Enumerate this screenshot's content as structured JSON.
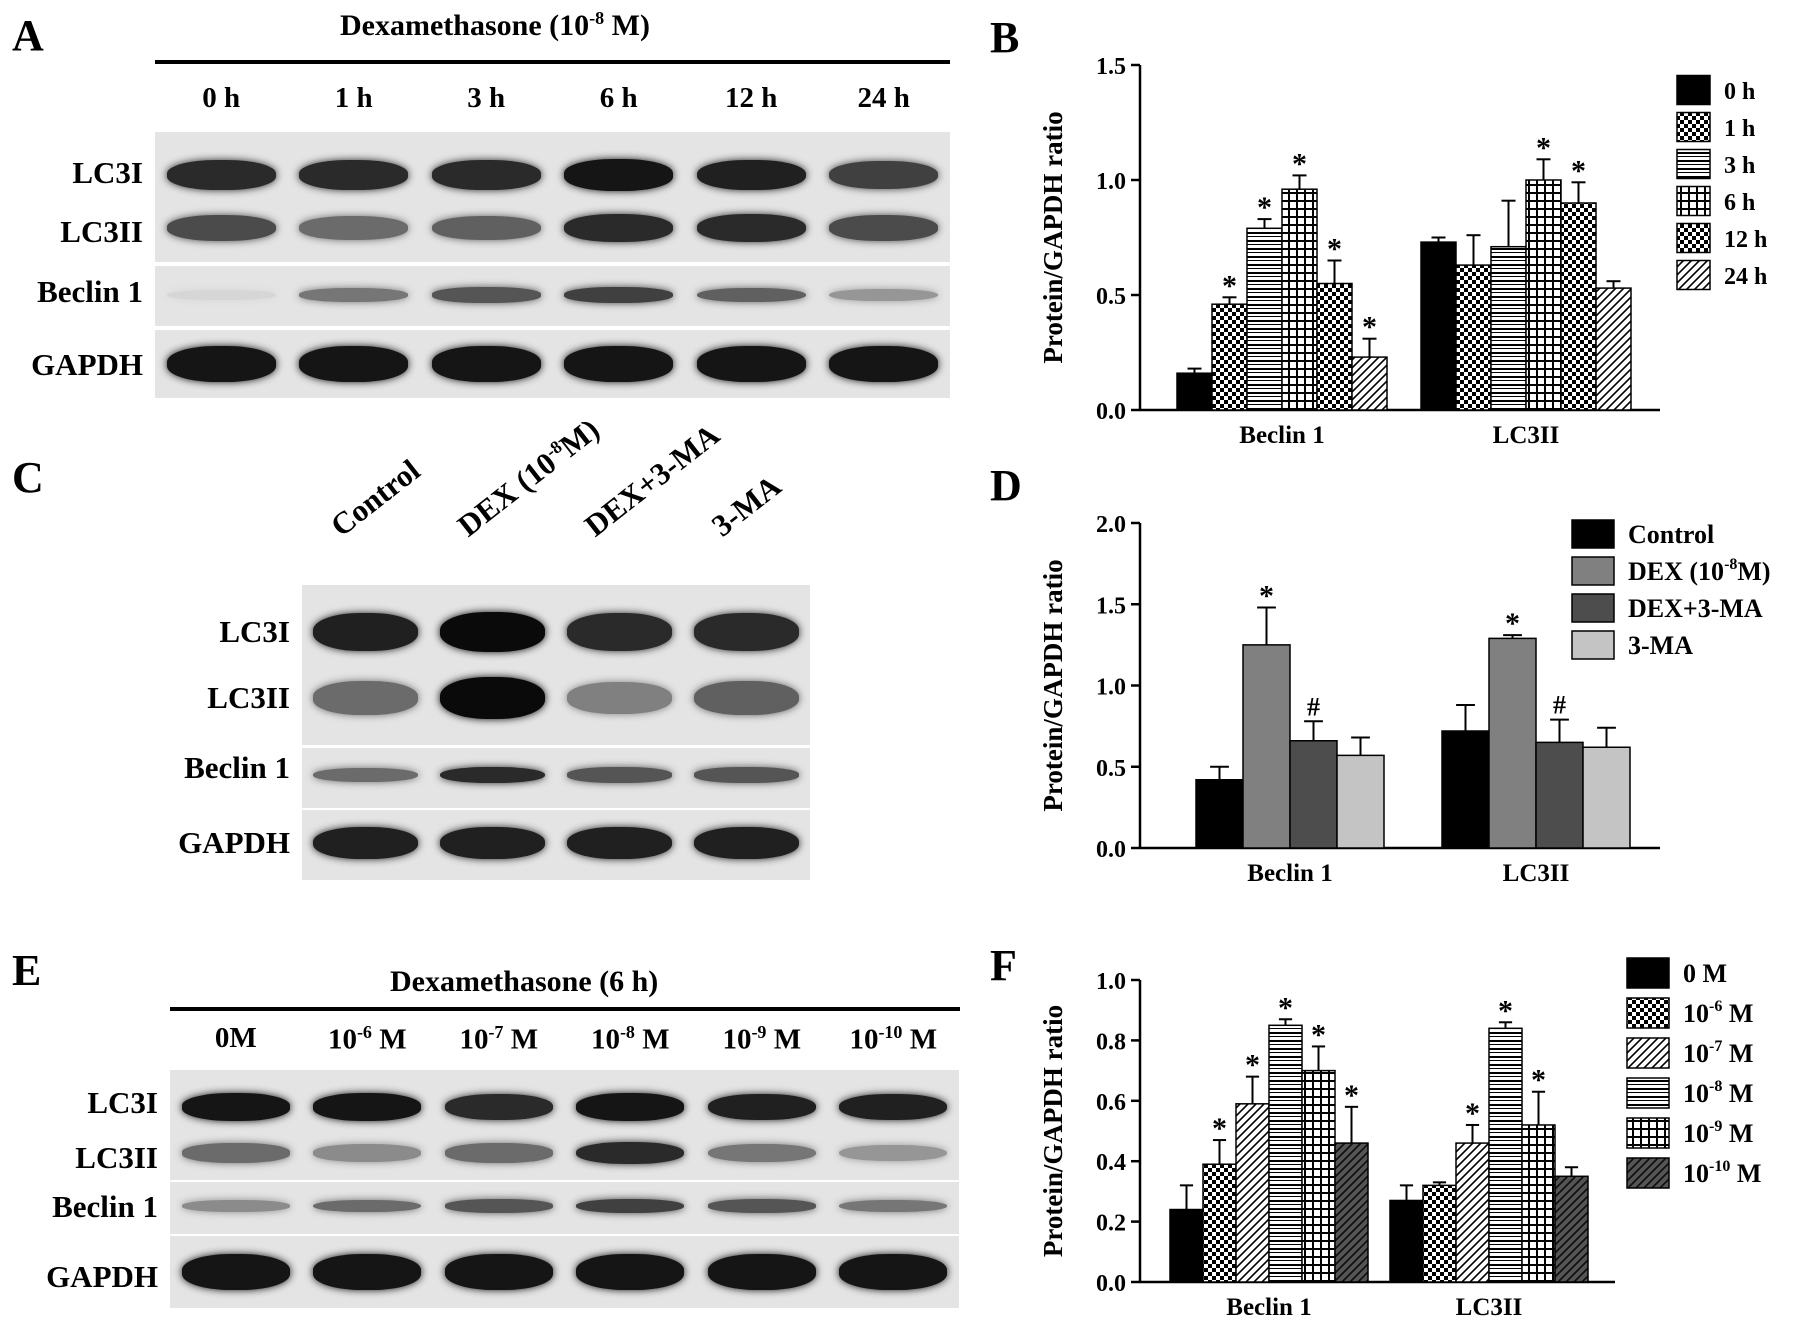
{
  "panels": {
    "A": {
      "letter": "A",
      "header_main": "Dexamethasone (10",
      "header_sup": "-8",
      "header_end": " M)",
      "lanes": [
        "0 h",
        "1 h",
        "3 h",
        "6 h",
        "12 h",
        "24 h"
      ],
      "rows": [
        "LC3I",
        "LC3II",
        "Beclin 1",
        "GAPDH"
      ]
    },
    "C": {
      "letter": "C",
      "lanes": [
        {
          "main": "Control",
          "sup": "",
          "end": ""
        },
        {
          "main": "DEX (10",
          "sup": "-8",
          "end": "M)"
        },
        {
          "main": "DEX+3-MA",
          "sup": "",
          "end": ""
        },
        {
          "main": "3-MA",
          "sup": "",
          "end": ""
        }
      ],
      "rows": [
        "LC3I",
        "LC3II",
        "Beclin 1",
        "GAPDH"
      ]
    },
    "E": {
      "letter": "E",
      "header": "Dexamethasone (6 h)",
      "lanes": [
        {
          "main": "0",
          "sup": "",
          "end": "M"
        },
        {
          "main": "10",
          "sup": "-6",
          "end": " M"
        },
        {
          "main": "10",
          "sup": "-7",
          "end": " M"
        },
        {
          "main": "10",
          "sup": "-8",
          "end": " M"
        },
        {
          "main": "10",
          "sup": "-9",
          "end": " M"
        },
        {
          "main": "10",
          "sup": "-10",
          "end": " M"
        }
      ],
      "rows": [
        "LC3I",
        "LC3II",
        "Beclin 1",
        "GAPDH"
      ]
    }
  },
  "chart_data": [
    {
      "panel": "B",
      "type": "bar",
      "ylabel": "Protein/GAPDH ratio",
      "ylim": [
        0,
        1.5
      ],
      "yticks": [
        "0.0",
        "0.5",
        "1.0",
        "1.5"
      ],
      "categories": [
        "Beclin 1",
        "LC3II"
      ],
      "legend_position": "top-right",
      "series": [
        {
          "name": "0 h",
          "pattern": "solid",
          "values": [
            0.16,
            0.73
          ],
          "errors": [
            0.02,
            0.02
          ],
          "marks": [
            "",
            ""
          ]
        },
        {
          "name": "1 h",
          "pattern": "checker",
          "values": [
            0.46,
            0.63
          ],
          "errors": [
            0.03,
            0.13
          ],
          "marks": [
            "*",
            ""
          ]
        },
        {
          "name": "3 h",
          "pattern": "hlines",
          "values": [
            0.79,
            0.71
          ],
          "errors": [
            0.04,
            0.2
          ],
          "marks": [
            "*",
            ""
          ]
        },
        {
          "name": "6 h",
          "pattern": "grid",
          "values": [
            0.96,
            1.0
          ],
          "errors": [
            0.06,
            0.09
          ],
          "marks": [
            "*",
            "*"
          ]
        },
        {
          "name": "12 h",
          "pattern": "checker",
          "values": [
            0.55,
            0.9
          ],
          "errors": [
            0.1,
            0.09
          ],
          "marks": [
            "*",
            "*"
          ]
        },
        {
          "name": "24 h",
          "pattern": "diag",
          "values": [
            0.23,
            0.53
          ],
          "errors": [
            0.08,
            0.03
          ],
          "marks": [
            "*",
            ""
          ]
        }
      ]
    },
    {
      "panel": "D",
      "type": "bar",
      "ylabel": "Protein/GAPDH ratio",
      "ylim": [
        0,
        2.0
      ],
      "yticks": [
        "0.0",
        "0.5",
        "1.0",
        "1.5",
        "2.0"
      ],
      "categories": [
        "Beclin 1",
        "LC3II"
      ],
      "legend_position": "top-right",
      "series": [
        {
          "name": "Control",
          "name_sup": "",
          "name_end": "",
          "pattern": "solid",
          "color": "#000000",
          "values": [
            0.42,
            0.72
          ],
          "errors": [
            0.08,
            0.16
          ],
          "marks": [
            "",
            ""
          ]
        },
        {
          "name": "DEX (10",
          "name_sup": "-8",
          "name_end": "M)",
          "pattern": "solid",
          "color": "#808080",
          "values": [
            1.25,
            1.29
          ],
          "errors": [
            0.23,
            0.02
          ],
          "marks": [
            "*",
            "*"
          ]
        },
        {
          "name": "DEX+3-MA",
          "name_sup": "",
          "name_end": "",
          "pattern": "solid",
          "color": "#4d4d4d",
          "values": [
            0.66,
            0.65
          ],
          "errors": [
            0.12,
            0.14
          ],
          "marks": [
            "#",
            "#"
          ]
        },
        {
          "name": "3-MA",
          "name_sup": "",
          "name_end": "",
          "pattern": "solid",
          "color": "#c4c4c4",
          "values": [
            0.57,
            0.62
          ],
          "errors": [
            0.11,
            0.12
          ],
          "marks": [
            "",
            ""
          ]
        }
      ]
    },
    {
      "panel": "F",
      "type": "bar",
      "ylabel": "Protein/GAPDH ratio",
      "ylim": [
        0,
        1.0
      ],
      "yticks": [
        "0.0",
        "0.2",
        "0.4",
        "0.6",
        "0.8",
        "1.0"
      ],
      "categories": [
        "Beclin 1",
        "LC3II"
      ],
      "legend_position": "top-right",
      "series": [
        {
          "name": "0",
          "name_sup": "",
          "name_end": " M",
          "pattern": "solid",
          "values": [
            0.24,
            0.27
          ],
          "errors": [
            0.08,
            0.05
          ],
          "marks": [
            "",
            ""
          ]
        },
        {
          "name": "10",
          "name_sup": "-6",
          "name_end": " M",
          "pattern": "checker",
          "values": [
            0.39,
            0.32
          ],
          "errors": [
            0.08,
            0.01
          ],
          "marks": [
            "*",
            ""
          ]
        },
        {
          "name": "10",
          "name_sup": "-7",
          "name_end": " M",
          "pattern": "diag",
          "values": [
            0.59,
            0.46
          ],
          "errors": [
            0.09,
            0.06
          ],
          "marks": [
            "*",
            "*"
          ]
        },
        {
          "name": "10",
          "name_sup": "-8",
          "name_end": " M",
          "pattern": "hlines",
          "values": [
            0.85,
            0.84
          ],
          "errors": [
            0.02,
            0.02
          ],
          "marks": [
            "*",
            "*"
          ]
        },
        {
          "name": "10",
          "name_sup": "-9",
          "name_end": " M",
          "pattern": "grid",
          "values": [
            0.7,
            0.52
          ],
          "errors": [
            0.08,
            0.11
          ],
          "marks": [
            "*",
            "*"
          ]
        },
        {
          "name": "10",
          "name_sup": "-10",
          "name_end": " M",
          "pattern": "darkdiag",
          "values": [
            0.46,
            0.35
          ],
          "errors": [
            0.12,
            0.03
          ],
          "marks": [
            "*",
            ""
          ]
        }
      ]
    }
  ]
}
